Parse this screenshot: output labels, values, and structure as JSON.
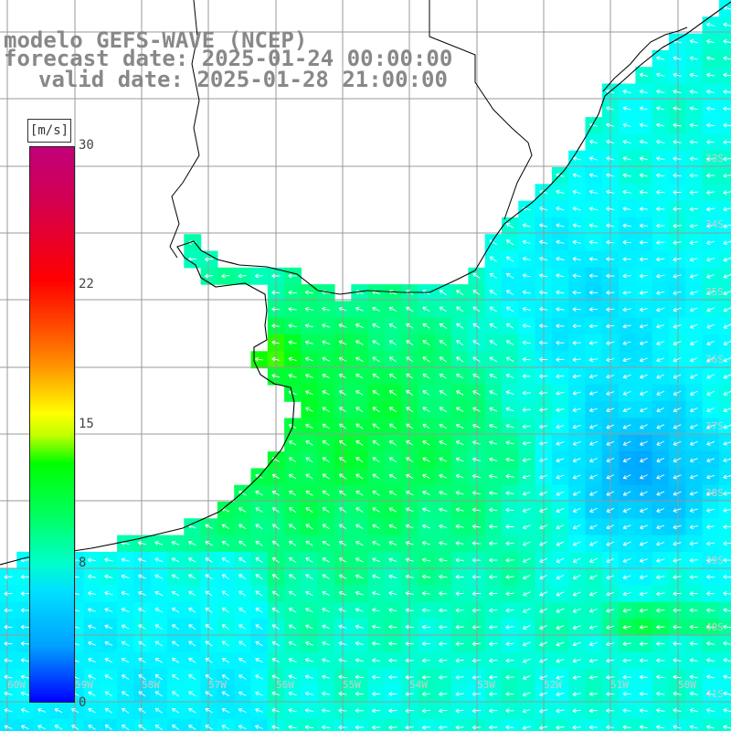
{
  "title": {
    "line1": "modelo GEFS-WAVE (NCEP)",
    "line2": "forecast date: 2025-01-24 00:00:00",
    "line3": "valid date: 2025-01-28 21:00:00"
  },
  "colorbar": {
    "units": "[m/s]",
    "ticks": [
      "30",
      "22",
      "15",
      "8",
      "0"
    ],
    "tick_values": [
      30,
      22,
      15,
      8,
      0
    ],
    "range": [
      0,
      30
    ],
    "colors": [
      "#0000ff",
      "#00a0ff",
      "#00ffff",
      "#00ff00",
      "#ffff00",
      "#ff0000",
      "#c0007a"
    ]
  },
  "axes": {
    "lon_labels": [
      "60W",
      "59W",
      "58W",
      "57W",
      "56W",
      "55W",
      "54W",
      "53W",
      "52W",
      "51W",
      "50W"
    ],
    "lat_labels": [
      "33S",
      "34S",
      "35S",
      "36S",
      "37S",
      "38S",
      "39S",
      "40S",
      "41S"
    ]
  },
  "map": {
    "region": "Rio de la Plata / Uruguay coast",
    "grid": true,
    "arrows": "white vectors pointing roughly westward / north-westward",
    "land_color": "#ffffff",
    "coast_color": "#000000",
    "grid_color": "#999999"
  }
}
